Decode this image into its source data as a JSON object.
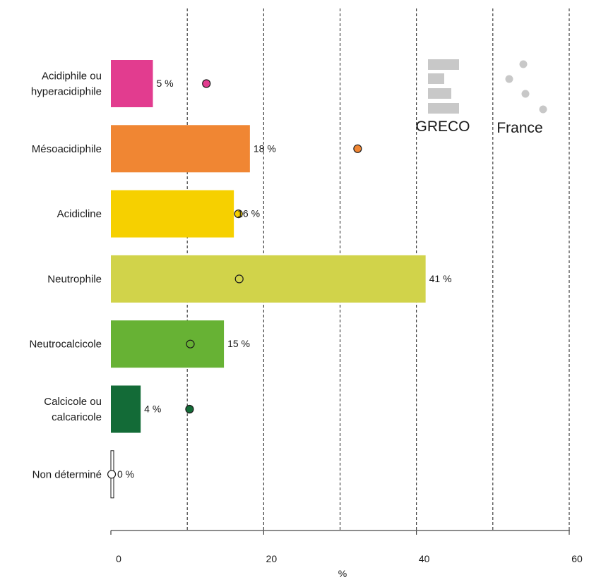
{
  "chart_data": {
    "type": "bar",
    "orientation": "horizontal",
    "xlabel": "%",
    "xlim": [
      0,
      60
    ],
    "ticks": [
      0,
      20,
      40,
      60
    ],
    "tick_labels": [
      "0",
      "20",
      "40",
      "60"
    ],
    "gridlines": [
      10,
      20,
      30,
      40,
      50,
      60
    ],
    "grid": "dashed vertical",
    "categories": [
      {
        "lines": [
          "Acidiphile ou",
          "hyperacidiphile"
        ]
      },
      {
        "lines": [
          "Mésoacidiphile"
        ]
      },
      {
        "lines": [
          "Acidicline"
        ]
      },
      {
        "lines": [
          "Neutrophile"
        ]
      },
      {
        "lines": [
          "Neutrocalcicole"
        ]
      },
      {
        "lines": [
          "Calcicole ou",
          "calcaricole"
        ]
      },
      {
        "lines": [
          "Non déterminé"
        ]
      }
    ],
    "series": [
      {
        "name": "GRECO",
        "kind": "bar",
        "values": [
          5.5,
          18.2,
          16.1,
          41.2,
          14.8,
          3.9,
          0.3
        ],
        "value_labels": [
          "5 %",
          "18 %",
          "16 %",
          "41 %",
          "15 %",
          "4 %",
          "0 %"
        ]
      },
      {
        "name": "France",
        "kind": "point",
        "values": [
          12.5,
          32.3,
          16.7,
          16.8,
          10.4,
          10.3,
          0.1
        ]
      }
    ],
    "colors": [
      "#e23c8f",
      "#f08633",
      "#f6d000",
      "#d1d34a",
      "#67b234",
      "#136b37",
      "#ffffff"
    ],
    "legend": {
      "placement": "top-right",
      "greco_label": "GRECO",
      "france_label": "France",
      "symbol_color": "#c8c8c8"
    }
  }
}
